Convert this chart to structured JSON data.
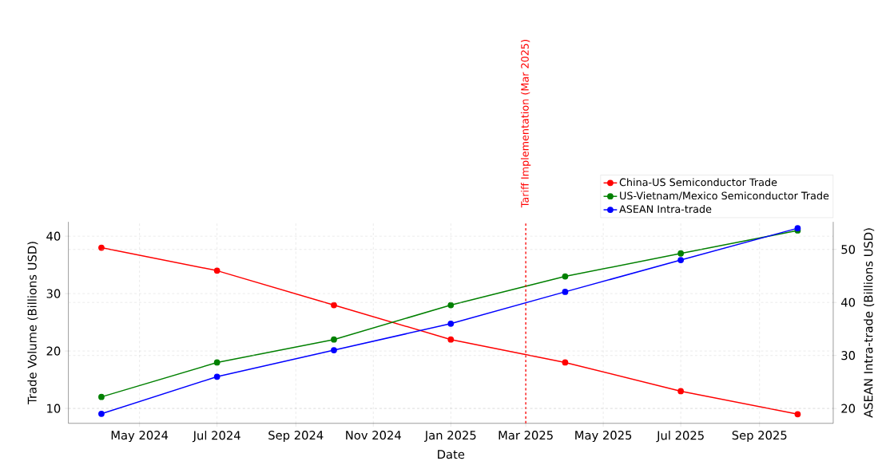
{
  "chart_data": {
    "type": "line",
    "xlabel": "Date",
    "ylabel": "Trade Volume (Billions USD)",
    "y2label": "ASEAN Intra-trade (Billions USD)",
    "x": [
      "2024-04",
      "2024-07",
      "2024-10",
      "2025-01",
      "2025-04",
      "2025-07",
      "2025-10"
    ],
    "series": [
      {
        "name": "China-US Semiconductor Trade",
        "color": "#ff0000",
        "values": [
          38,
          34,
          28,
          22,
          18,
          13,
          9
        ]
      },
      {
        "name": "US-Vietnam/Mexico Semiconductor Trade",
        "color": "#008000",
        "values": [
          12,
          18,
          22,
          28,
          33,
          37,
          41
        ]
      },
      {
        "name": "ASEAN Intra-trade",
        "color": "#0000ff",
        "axis": "y2",
        "values": [
          19,
          26,
          31,
          36,
          42,
          48,
          54
        ]
      }
    ],
    "xlim": [
      "2024-03-06",
      "2025-10-29"
    ],
    "ylim": [
      7.4,
      42.5
    ],
    "y2lim": [
      17.2,
      55.2
    ],
    "xticks": [
      {
        "value": "2024-05",
        "label": "May 2024"
      },
      {
        "value": "2024-07",
        "label": "Jul 2024"
      },
      {
        "value": "2024-09",
        "label": "Sep 2024"
      },
      {
        "value": "2024-11",
        "label": "Nov 2024"
      },
      {
        "value": "2025-01",
        "label": "Jan 2025"
      },
      {
        "value": "2025-03",
        "label": "Mar 2025"
      },
      {
        "value": "2025-05",
        "label": "May 2025"
      },
      {
        "value": "2025-07",
        "label": "Jul 2025"
      },
      {
        "value": "2025-09",
        "label": "Sep 2025"
      }
    ],
    "yticks": [
      10,
      20,
      30,
      40
    ],
    "y2ticks": [
      20,
      30,
      40,
      50
    ],
    "ref_lines": [
      {
        "axis": "x",
        "value": "2025-03",
        "label": "Tariff Implementation (Mar 2025)",
        "color": "#ff0000",
        "line_style": "dashed"
      }
    ],
    "grid": true,
    "legend": "top right",
    "marker": "circle",
    "line_style": "solid"
  }
}
